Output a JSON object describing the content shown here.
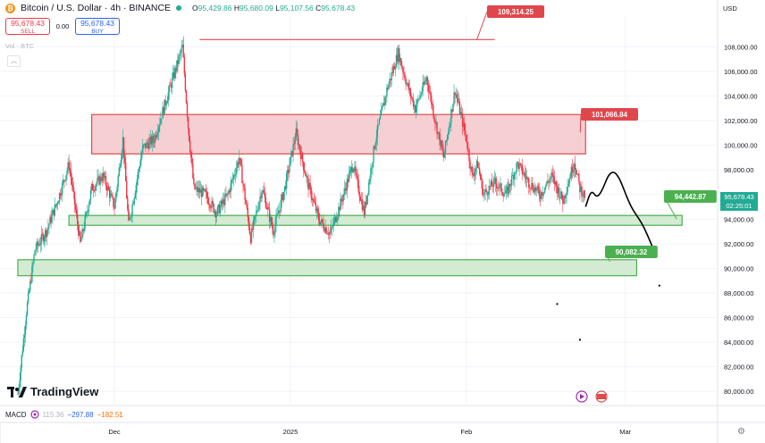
{
  "header": {
    "symbol": "Bitcoin / U.S. Dollar · 4h · BINANCE",
    "coin_icon": "bitcoin-icon",
    "open_label": "O",
    "open": "95,429.86",
    "high_label": "H",
    "high": "95,680.09",
    "low_label": "L",
    "low": "95,107.56",
    "close_label": "C",
    "close": "95,678.43"
  },
  "trade": {
    "sell_price": "95,678.43",
    "sell_label": "SELL",
    "spread": "0.00",
    "buy_price": "95,678.43",
    "buy_label": "BUY"
  },
  "volume_label": "Vol · BTC",
  "currency": "USD",
  "current_price": {
    "price": "95,678.43",
    "countdown": "02:25:01",
    "color": "#22ab94"
  },
  "branding": "TradingView",
  "macd": {
    "label": "MACD",
    "v1": "115.36",
    "v2": "−297.88",
    "v3": "−182.51"
  },
  "chart_data": {
    "type": "candlestick",
    "y_ticks": [
      80000,
      82000,
      84000,
      86000,
      88000,
      90000,
      92000,
      94000,
      96000,
      98000,
      100000,
      102000,
      104000,
      106000,
      108000
    ],
    "y_tick_labels": [
      "80,000.00",
      "82,000.00",
      "84,000.00",
      "86,000.00",
      "88,000.00",
      "90,000.00",
      "92,000.00",
      "94,000.00",
      "96,000.00",
      "98,000.00",
      "100,000.00",
      "102,000.00",
      "104,000.00",
      "106,000.00",
      "108,000.00"
    ],
    "ylim": [
      79000,
      110500
    ],
    "x_ticks": [
      "Dec",
      "2025",
      "Feb",
      "Mar"
    ],
    "x_tick_positions_days": [
      17,
      48,
      79,
      107
    ],
    "xlim_days": [
      0,
      122
    ],
    "price_anchors": [
      [
        0,
        79800
      ],
      [
        1.5,
        86500
      ],
      [
        3,
        91500
      ],
      [
        5,
        93000
      ],
      [
        7,
        95500
      ],
      [
        9,
        98500
      ],
      [
        11,
        92000
      ],
      [
        13,
        96500
      ],
      [
        15,
        97500
      ],
      [
        17,
        95000
      ],
      [
        18.5,
        100500
      ],
      [
        19.5,
        93500
      ],
      [
        22,
        99800
      ],
      [
        24,
        100500
      ],
      [
        26,
        103500
      ],
      [
        28,
        106500
      ],
      [
        29,
        108000
      ],
      [
        30,
        101500
      ],
      [
        31,
        96500
      ],
      [
        33,
        96000
      ],
      [
        35,
        94500
      ],
      [
        37,
        96000
      ],
      [
        39,
        99000
      ],
      [
        41,
        92500
      ],
      [
        43,
        96500
      ],
      [
        45,
        93000
      ],
      [
        47,
        96500
      ],
      [
        49,
        101000
      ],
      [
        51,
        97000
      ],
      [
        53,
        94000
      ],
      [
        55,
        92800
      ],
      [
        57,
        95500
      ],
      [
        59,
        98500
      ],
      [
        61,
        94500
      ],
      [
        63,
        100500
      ],
      [
        65,
        104500
      ],
      [
        67,
        107500
      ],
      [
        68.5,
        105000
      ],
      [
        70,
        103000
      ],
      [
        72,
        105500
      ],
      [
        73.5,
        102000
      ],
      [
        75,
        99000
      ],
      [
        77,
        104500
      ],
      [
        78,
        102500
      ],
      [
        79,
        100500
      ],
      [
        80,
        97500
      ],
      [
        81,
        98500
      ],
      [
        82,
        96000
      ],
      [
        84,
        97000
      ],
      [
        86,
        96000
      ],
      [
        88,
        98500
      ],
      [
        90,
        97000
      ],
      [
        92,
        96000
      ],
      [
        94,
        97500
      ],
      [
        96,
        95500
      ],
      [
        98,
        98700
      ],
      [
        99,
        96500
      ],
      [
        100,
        95800
      ]
    ],
    "resistance_zone": {
      "top": 102500,
      "bottom": 99300,
      "label": "101,066.84",
      "start_day": 13,
      "end_day": 100
    },
    "support_zone": {
      "top": 94300,
      "bottom": 93500,
      "label": "94,442.87",
      "start_day": 9,
      "end_day": 117
    },
    "lower_zone": {
      "top": 90700,
      "bottom": 89400,
      "label": "90,082.32",
      "start_day": 0,
      "end_day": 109
    },
    "ath_line": {
      "value": 109314.25,
      "label": "109,314.25",
      "start_day": 32,
      "end_day": 84
    },
    "projection_path_prices": [
      [
        100,
        95000
      ],
      [
        101,
        96400
      ],
      [
        102,
        95700
      ],
      [
        103,
        96400
      ],
      [
        104,
        97600
      ],
      [
        105,
        97900
      ],
      [
        106,
        97300
      ],
      [
        107,
        96100
      ],
      [
        108,
        95000
      ],
      [
        109,
        94300
      ],
      [
        110,
        93600
      ],
      [
        111,
        92600
      ],
      [
        112,
        91500
      ]
    ],
    "projection_dots": [
      [
        95,
        87100
      ],
      [
        99,
        84200
      ],
      [
        113,
        88600
      ]
    ],
    "colors": {
      "up": "#22ab94",
      "down": "#f23645",
      "resistance_fill": "#f6cfd3",
      "resistance_stroke": "#e04a4a",
      "support_fill": "#d2ebd2",
      "support_stroke": "#4caf50",
      "label_red": "#e0474c",
      "label_green": "#4caf50",
      "grid": "#f0f3fa"
    }
  }
}
